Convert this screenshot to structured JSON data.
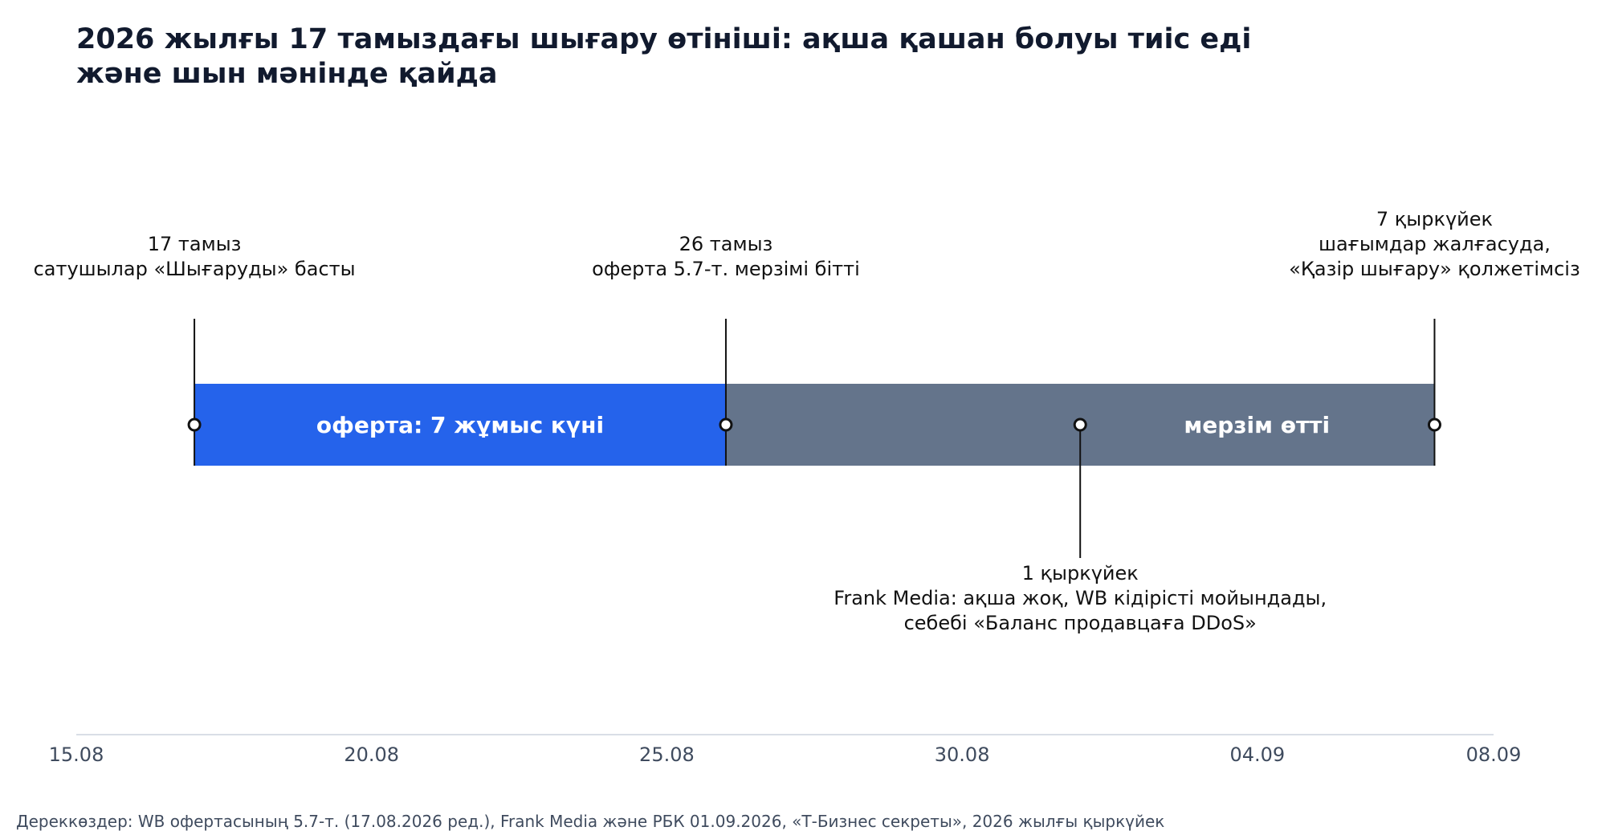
{
  "chart_data": {
    "type": "timeline",
    "title": "2026 жылғы 17 тамыздағы шығару өтініші: ақша қашан болуы тиіс еді және шын мәнінде қайда",
    "title_lines": [
      "2026 жылғы 17 тамыздағы шығару өтініші: ақша қашан болуы тиіс еді",
      "және шын мәнінде қайда"
    ],
    "xlim": [
      "2026-08-15",
      "2026-09-08"
    ],
    "ticks": [
      {
        "date": "2026-08-15",
        "label": "15.08"
      },
      {
        "date": "2026-08-20",
        "label": "20.08"
      },
      {
        "date": "2026-08-25",
        "label": "25.08"
      },
      {
        "date": "2026-08-30",
        "label": "30.08"
      },
      {
        "date": "2026-09-04",
        "label": "04.09"
      },
      {
        "date": "2026-09-08",
        "label": "08.09"
      }
    ],
    "segments": [
      {
        "start": "2026-08-17",
        "end": "2026-08-26",
        "label": "оферта: 7 жұмыс күні",
        "color": "#2563eb"
      },
      {
        "start": "2026-08-26",
        "end": "2026-09-07",
        "label": "мерзім өтті",
        "color": "#64748b"
      }
    ],
    "events": [
      {
        "date": "2026-08-17",
        "position": "above",
        "lines": [
          "17 тамыз",
          "сатушылар «Шығаруды» басты"
        ]
      },
      {
        "date": "2026-08-26",
        "position": "above",
        "lines": [
          "26 тамыз",
          "оферта 5.7-т. мерзімі бітті"
        ]
      },
      {
        "date": "2026-09-01",
        "position": "below",
        "lines": [
          "1 қыркүйек",
          "Frank Media: ақша жоқ, WB кідірісті мойындады,",
          "себебі «Баланс продавцаға DDoS»"
        ]
      },
      {
        "date": "2026-09-07",
        "position": "above",
        "lines": [
          "7 қыркүйек",
          "шағымдар жалғасуда,",
          "«Қазір шығару» қолжетімсіз"
        ]
      }
    ],
    "grid": false,
    "source": "Дереккөздер: WB офертасының 5.7-т. (17.08.2026 ред.), Frank Media және РБК 01.09.2026, «Т-Бизнес секреты», 2026 жылғы қыркүйек"
  },
  "colors": {
    "title": "#111a2e",
    "offer": "#2563eb",
    "overdue": "#64748b",
    "axis": "#d9dee6",
    "tick_text": "#3f4b5e",
    "marker_stroke": "#111111"
  }
}
